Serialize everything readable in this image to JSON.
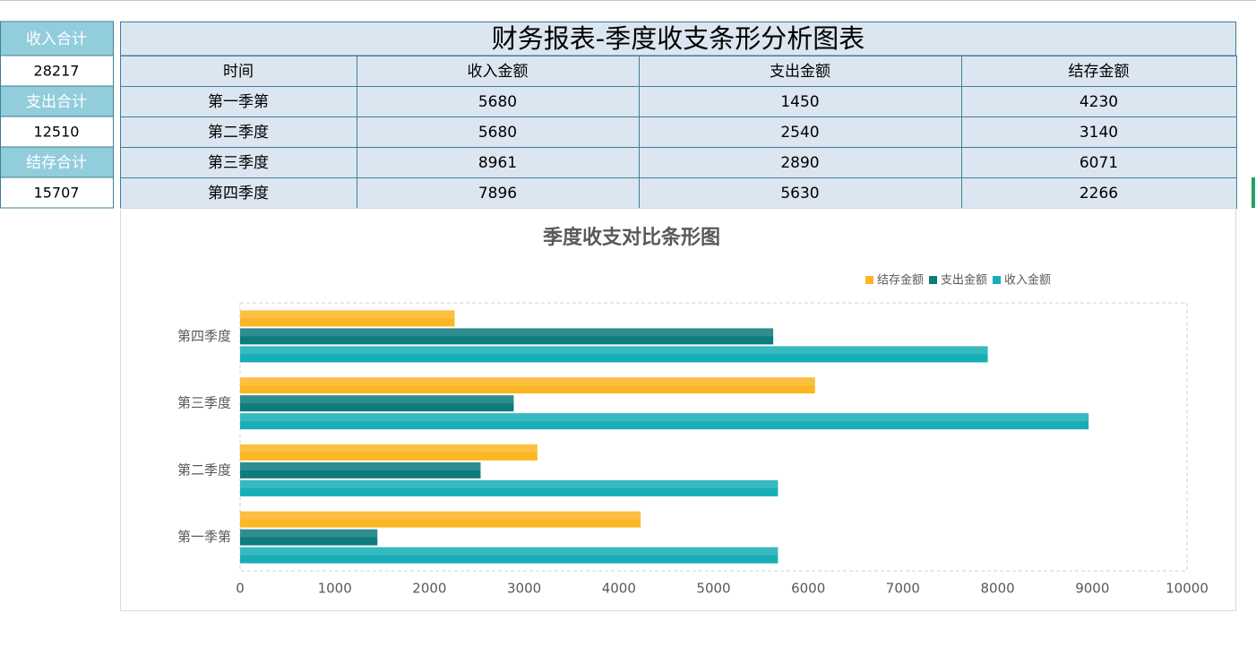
{
  "summary": [
    {
      "label": "收入合计",
      "value": 28217
    },
    {
      "label": "支出合计",
      "value": 12510
    },
    {
      "label": "结存合计",
      "value": 15707
    }
  ],
  "table": {
    "title": "财务报表-季度收支条形分析图表",
    "header": [
      "时间",
      "收入金额",
      "支出金额",
      "结存金额"
    ],
    "rows": [
      [
        "第一季第",
        5680,
        1450,
        4230
      ],
      [
        "第二季度",
        5680,
        2540,
        3140
      ],
      [
        "第三季度",
        8961,
        2890,
        6071
      ],
      [
        "第四季度",
        7896,
        5630,
        2266
      ]
    ]
  },
  "chart_data": {
    "type": "bar",
    "orientation": "horizontal",
    "title": "季度收支对比条形图",
    "categories": [
      "第一季第",
      "第二季度",
      "第三季度",
      "第四季度"
    ],
    "series": [
      {
        "name": "收入金额",
        "color": "#17aeb6",
        "values": [
          5680,
          5680,
          8961,
          7896
        ]
      },
      {
        "name": "支出金额",
        "color": "#0e7b7d",
        "values": [
          1450,
          2540,
          2890,
          5630
        ]
      },
      {
        "name": "结存金额",
        "color": "#fbb624",
        "values": [
          4230,
          3140,
          6071,
          2266
        ]
      }
    ],
    "xlim": [
      0,
      10000
    ],
    "xticks": [
      0,
      1000,
      2000,
      3000,
      4000,
      5000,
      6000,
      7000,
      8000,
      9000,
      10000
    ],
    "legend": "top-right"
  }
}
